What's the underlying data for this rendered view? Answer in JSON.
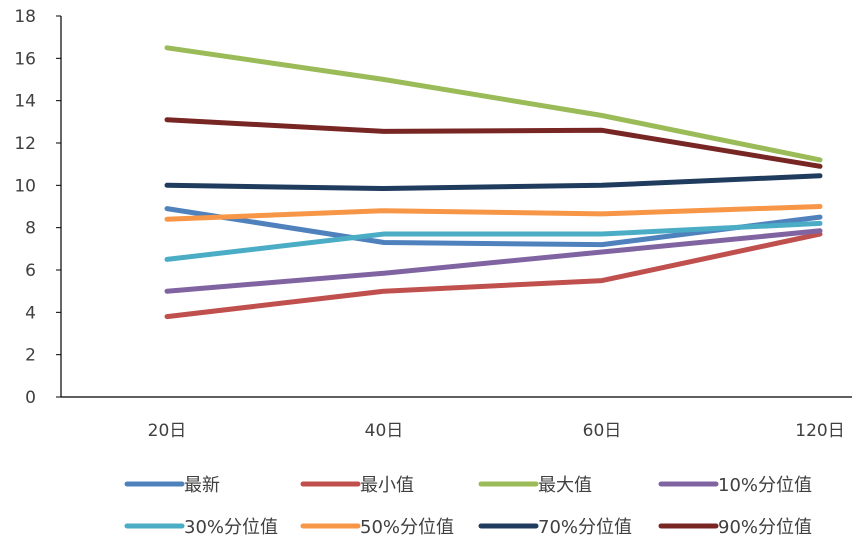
{
  "chart_data": {
    "type": "line",
    "categories": [
      "20日",
      "40日",
      "60日",
      "120日"
    ],
    "ylim": [
      0,
      18
    ],
    "yticks": [
      0,
      2,
      4,
      6,
      8,
      10,
      12,
      14,
      16,
      18
    ],
    "grid": false,
    "legend_position": "bottom",
    "series": [
      {
        "name": "最新",
        "color": "#4F81BD",
        "values": [
          8.9,
          7.3,
          7.2,
          8.5
        ]
      },
      {
        "name": "最小值",
        "color": "#C0504D",
        "values": [
          3.8,
          5.0,
          5.5,
          7.7
        ]
      },
      {
        "name": "最大值",
        "color": "#9BBB59",
        "values": [
          16.5,
          15.0,
          13.3,
          11.2
        ]
      },
      {
        "name": "10%分位值",
        "color": "#8064A2",
        "values": [
          5.0,
          5.85,
          6.85,
          7.85
        ]
      },
      {
        "name": "30%分位值",
        "color": "#4BACC6",
        "values": [
          6.5,
          7.7,
          7.7,
          8.2
        ]
      },
      {
        "name": "50%分位值",
        "color": "#F79646",
        "values": [
          8.4,
          8.8,
          8.65,
          9.0
        ]
      },
      {
        "name": "70%分位值",
        "color": "#1F3B5E",
        "values": [
          10.0,
          9.85,
          10.0,
          10.45
        ]
      },
      {
        "name": "90%分位值",
        "color": "#782624",
        "values": [
          13.1,
          12.55,
          12.6,
          10.9
        ]
      }
    ]
  }
}
